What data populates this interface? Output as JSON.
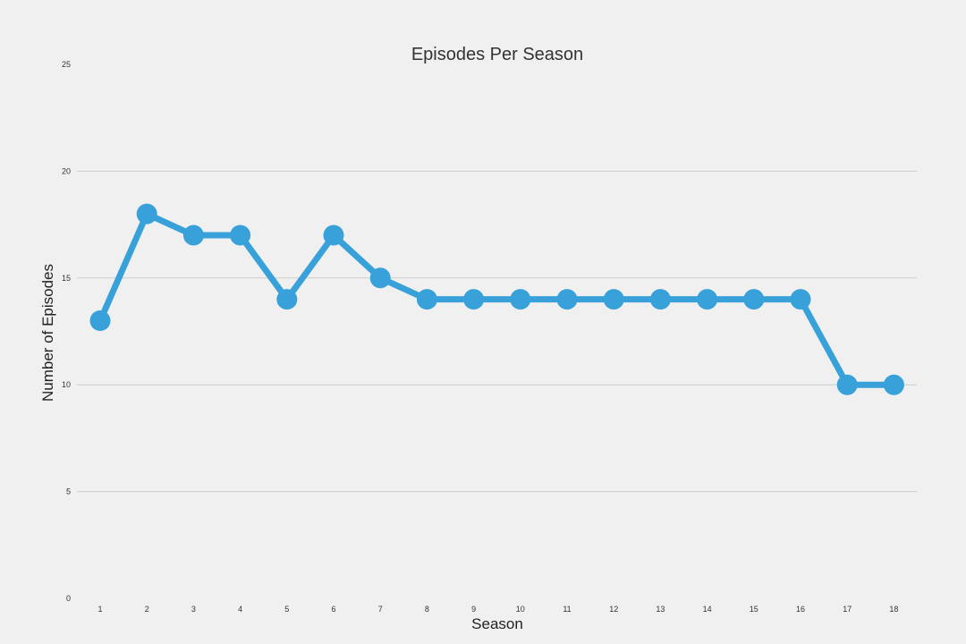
{
  "chart_data": {
    "type": "line",
    "title": "Episodes Per Season",
    "xlabel": "Season",
    "ylabel": "Number of Episodes",
    "categories": [
      "1",
      "2",
      "3",
      "4",
      "5",
      "6",
      "7",
      "8",
      "9",
      "10",
      "11",
      "12",
      "13",
      "14",
      "15",
      "16",
      "17",
      "18"
    ],
    "series": [
      {
        "values": [
          13,
          18,
          17,
          17,
          14,
          17,
          15,
          14,
          14,
          14,
          14,
          14,
          14,
          14,
          14,
          14,
          10,
          10
        ]
      }
    ],
    "ylim": [
      0,
      25
    ],
    "yticks": [
      "0",
      "5",
      "10",
      "15",
      "20",
      "25"
    ],
    "grid": true,
    "line_color": "#38a1d9",
    "grid_color": "#cccccc",
    "background_color": "#f0f0f0"
  }
}
